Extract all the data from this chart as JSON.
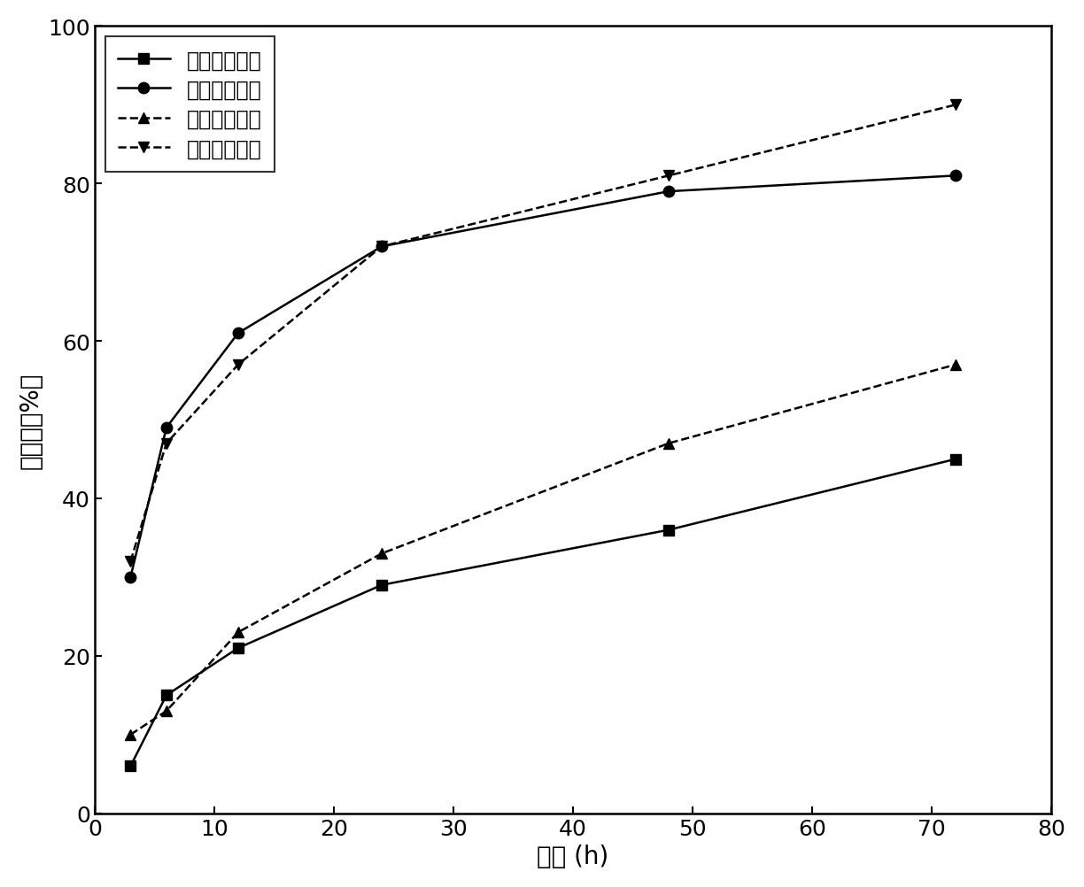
{
  "x": [
    3,
    6,
    12,
    24,
    48,
    72
  ],
  "series": [
    {
      "label": "驯化前毒死螱",
      "y": [
        6,
        15,
        21,
        29,
        36,
        45
      ],
      "linestyle": "-",
      "marker": "s",
      "color": "#000000",
      "marker_size": 9
    },
    {
      "label": "驯化后毒死螱",
      "y": [
        30,
        49,
        61,
        72,
        79,
        81
      ],
      "linestyle": "-",
      "marker": "o",
      "color": "#000000",
      "marker_size": 9
    },
    {
      "label": "驯化前多菌灵",
      "y": [
        10,
        13,
        23,
        33,
        47,
        57
      ],
      "linestyle": "--",
      "marker": "^",
      "color": "#000000",
      "marker_size": 9
    },
    {
      "label": "驯化后多菌灵",
      "y": [
        32,
        47,
        57,
        72,
        81,
        90
      ],
      "linestyle": "--",
      "marker": "v",
      "color": "#000000",
      "marker_size": 9
    }
  ],
  "xlabel": "时间 (h)",
  "ylabel": "降解率（%）",
  "xlim": [
    0,
    80
  ],
  "ylim": [
    0,
    100
  ],
  "xticks": [
    0,
    10,
    20,
    30,
    40,
    50,
    60,
    70,
    80
  ],
  "yticks": [
    0,
    20,
    40,
    60,
    80,
    100
  ],
  "legend_loc": "upper left",
  "linewidth": 1.8,
  "font_size_label": 20,
  "font_size_tick": 18,
  "font_size_legend": 17
}
